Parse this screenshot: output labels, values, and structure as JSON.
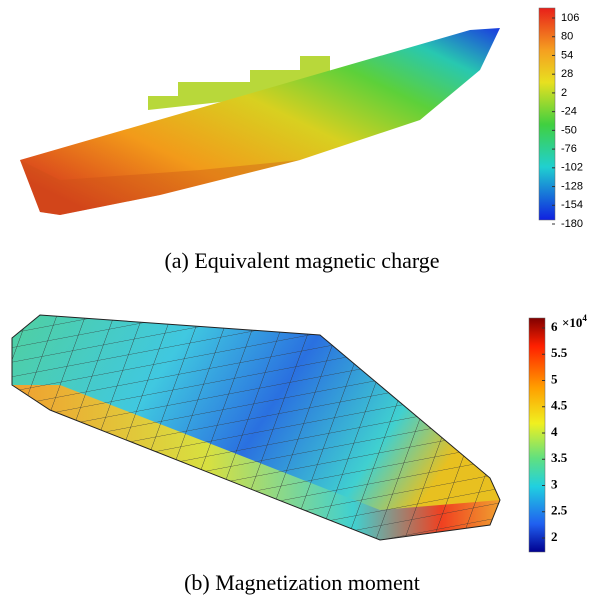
{
  "figures": [
    {
      "caption": "(a) Equivalent magnetic charge",
      "colorbar": {
        "ticks": [
          106,
          80,
          54,
          28,
          2,
          -24,
          -50,
          -76,
          -102,
          -128,
          -154,
          -180
        ]
      }
    },
    {
      "caption": "(b) Magnetization moment",
      "colorbar": {
        "ticks": [
          6,
          5.5,
          5,
          4.5,
          4,
          3.5,
          3,
          2.5,
          2
        ],
        "multiplier_base": "×10",
        "multiplier_exponent": "4"
      }
    }
  ]
}
